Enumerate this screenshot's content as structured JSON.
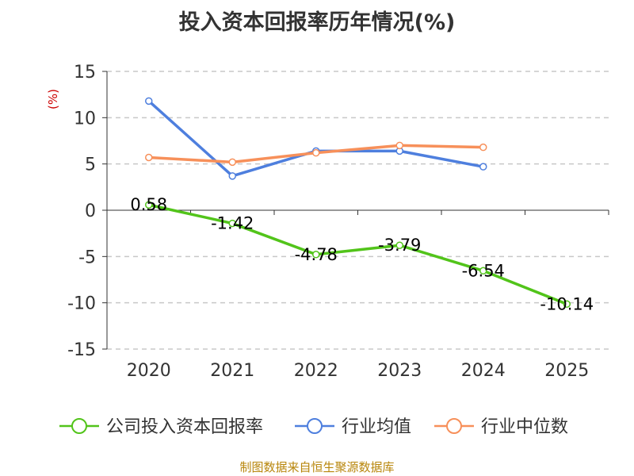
{
  "title": "投入资本回报率历年情况(%)",
  "footer": "制图数据来自恒生聚源数据库",
  "colors": {
    "company": "#52c41a",
    "industry_avg": "#4e7fde",
    "industry_median": "#f7905a",
    "y_unit": "#cc0000",
    "footer": "#b8860b"
  },
  "chart_data": {
    "type": "line",
    "title": "投入资本回报率历年情况(%)",
    "y_unit": "(%)",
    "categories": [
      "2020",
      "2021",
      "2022",
      "2023",
      "2024",
      "2025"
    ],
    "ylim": [
      -15,
      15
    ],
    "yticks": [
      -15,
      -10,
      -5,
      0,
      5,
      10,
      15
    ],
    "grid": true,
    "legend_position": "bottom",
    "series": [
      {
        "name": "公司投入资本回报率",
        "values": [
          0.58,
          -1.42,
          -4.78,
          -3.79,
          -6.54,
          -10.14
        ],
        "labels": [
          "0.58",
          "-1.42",
          "-4.78",
          "-3.79",
          "-6.54",
          "-10.14"
        ],
        "color": "#52c41a"
      },
      {
        "name": "行业均值",
        "values": [
          11.8,
          3.7,
          6.4,
          6.4,
          4.7,
          null
        ],
        "color": "#4e7fde"
      },
      {
        "name": "行业中位数",
        "values": [
          5.7,
          5.2,
          6.2,
          7.0,
          6.8,
          null
        ],
        "color": "#f7905a"
      }
    ]
  }
}
